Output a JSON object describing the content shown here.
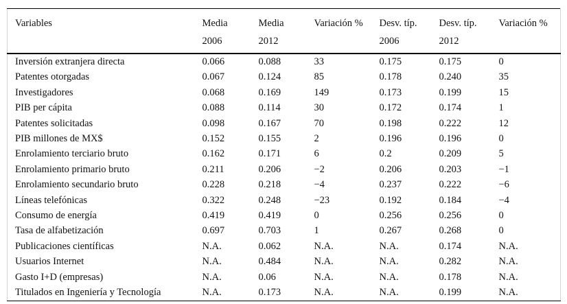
{
  "table": {
    "columns": [
      {
        "line1": "Variables",
        "line2": ""
      },
      {
        "line1": "Media",
        "line2": "2006"
      },
      {
        "line1": "Media",
        "line2": "2012"
      },
      {
        "line1": "Variación %",
        "line2": ""
      },
      {
        "line1": "Desv. típ.",
        "line2": "2006"
      },
      {
        "line1": "Desv. típ.",
        "line2": "2012"
      },
      {
        "line1": "Variación %",
        "line2": ""
      }
    ],
    "rows": [
      [
        "Inversión extranjera directa",
        "0.066",
        "0.088",
        "33",
        "0.175",
        "0.175",
        "0"
      ],
      [
        "Patentes otorgadas",
        "0.067",
        "0.124",
        "85",
        "0.178",
        "0.240",
        "35"
      ],
      [
        "Investigadores",
        "0.068",
        "0.169",
        "149",
        "0.173",
        "0.199",
        "15"
      ],
      [
        "PIB per cápita",
        "0.088",
        "0.114",
        "30",
        "0.172",
        "0.174",
        "1"
      ],
      [
        "Patentes solicitadas",
        "0.098",
        "0.167",
        "70",
        "0.198",
        "0.222",
        "12"
      ],
      [
        "PIB millones de MX$",
        "0.152",
        "0.155",
        "2",
        "0.196",
        "0.196",
        "0"
      ],
      [
        "Enrolamiento terciario bruto",
        "0.162",
        "0.171",
        "6",
        "0.2",
        "0.209",
        "5"
      ],
      [
        "Enrolamiento primario bruto",
        "0.211",
        "0.206",
        "−2",
        "0.206",
        "0.203",
        "−1"
      ],
      [
        "Enrolamiento secundario bruto",
        "0.228",
        "0.218",
        "−4",
        "0.237",
        "0.222",
        "−6"
      ],
      [
        "Líneas telefónicas",
        "0.322",
        "0.248",
        "−23",
        "0.192",
        "0.184",
        "−4"
      ],
      [
        "Consumo de energía",
        "0.419",
        "0.419",
        "0",
        "0.256",
        "0.256",
        "0"
      ],
      [
        "Tasa de alfabetización",
        "0.697",
        "0.703",
        "1",
        "0.267",
        "0.268",
        "0"
      ],
      [
        "Publicaciones científicas",
        "N.A.",
        "0.062",
        "N.A.",
        "N.A.",
        "0.174",
        "N.A."
      ],
      [
        "Usuarios Internet",
        "N.A.",
        "0.484",
        "N.A.",
        "N.A.",
        "0.282",
        "N.A."
      ],
      [
        "Gasto I+D (empresas)",
        "N.A.",
        "0.06",
        "N.A.",
        "N.A.",
        "0.178",
        "N.A."
      ],
      [
        "Titulados en Ingeniería y Tecnología",
        "N.A.",
        "0.173",
        "N.A.",
        "N.A.",
        "0.199",
        "N.A."
      ]
    ],
    "colors": {
      "rule": "#000000",
      "edge_line": "#d4d4d4",
      "text": "#111111",
      "background": "#ffffff"
    }
  }
}
